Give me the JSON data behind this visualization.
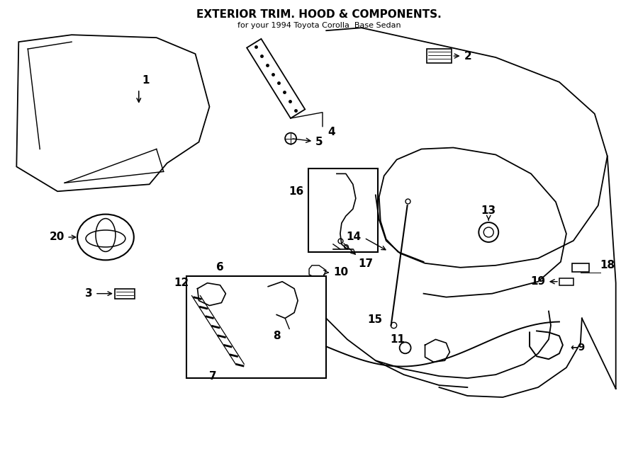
{
  "title": "EXTERIOR TRIM. HOOD & COMPONENTS.",
  "subtitle": "for your 1994 Toyota Corolla  Base Sedan",
  "bg": "#ffffff",
  "lc": "#000000",
  "fig_w": 9.0,
  "fig_h": 6.61,
  "dpi": 100
}
